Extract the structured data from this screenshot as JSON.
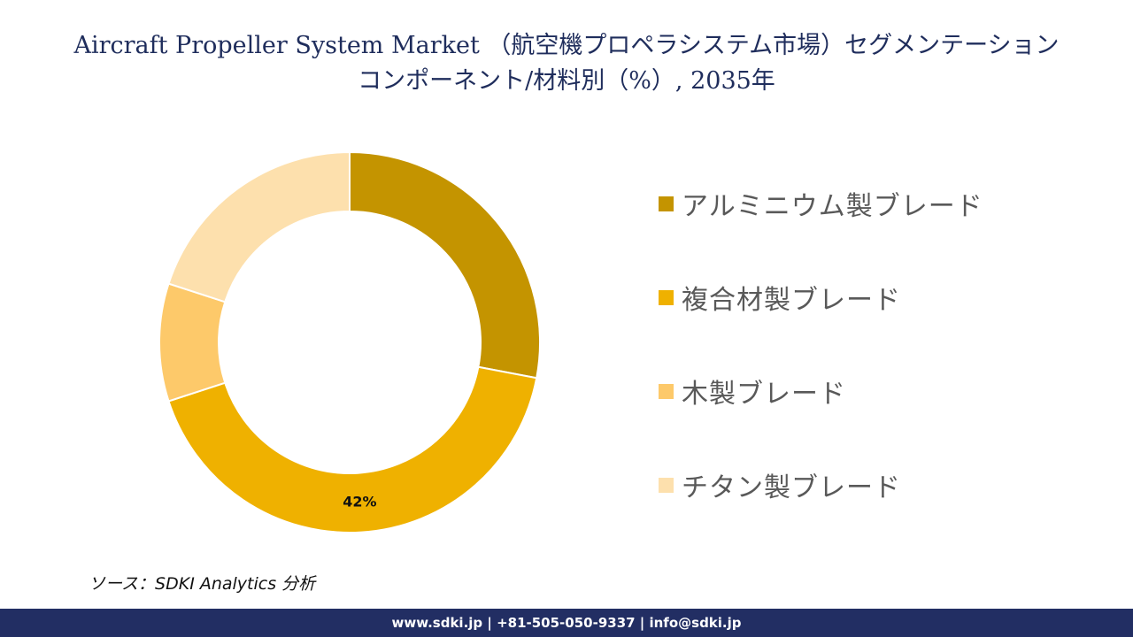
{
  "header": {
    "title_line1": "Aircraft Propeller System Market （航空機プロペラシステム市場）セグメンテーション",
    "title_line2": "コンポーネント/材料別（%）, 2035年"
  },
  "chart_data": {
    "type": "pie",
    "donut": true,
    "categories": [
      "アルミニウム製ブレード",
      "複合材製ブレード",
      "木製ブレード",
      "チタン製ブレード"
    ],
    "values": [
      28,
      42,
      10,
      20
    ],
    "colors": [
      "#c49400",
      "#efb100",
      "#fdc96a",
      "#fde0ad"
    ],
    "data_labels": [
      "",
      "42%",
      "",
      ""
    ],
    "legend_position": "right"
  },
  "source": "ソース：SDKI Analytics 分析",
  "footer": {
    "contact": "www.sdki.jp | +81-505-050-9337 | info@sdki.jp"
  }
}
